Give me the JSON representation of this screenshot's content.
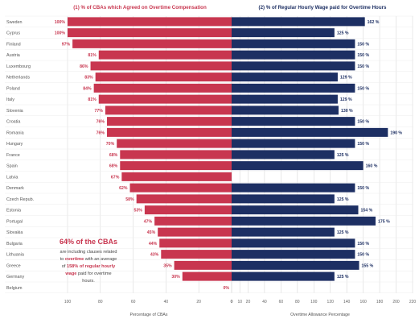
{
  "colors": {
    "left_bar": "#c8364f",
    "right_bar": "#1d2f63",
    "left_title": "#c8364f",
    "right_title": "#1d2f63",
    "callout_accent": "#c8364f",
    "grid": "#d9d9d9",
    "tick_text": "#666666",
    "label_text": "#555555"
  },
  "chart_data": {
    "type": "bar",
    "titles": {
      "left": "(1) % of CBAs which Agreed on Overtime Compensation",
      "right": "(2) % of Regular Hourly Wage paid for Overtime Hours"
    },
    "categories": [
      "Sweden",
      "Cyprus",
      "Finland",
      "Austria",
      "Luxembourg",
      "Netherlands",
      "Poland",
      "Italy",
      "Slovenia",
      "Croatia",
      "Romania",
      "Hungary",
      "France",
      "Spain",
      "Latvia",
      "Denmark",
      "Czech Repub.",
      "Estonia",
      "Portugal",
      "Slovakia",
      "Bulgaria",
      "Lithuania",
      "Greece",
      "Germany",
      "Belgium"
    ],
    "series": [
      {
        "name": "",
        "side": "left",
        "values": [
          100,
          100,
          97,
          81,
          86,
          83,
          84,
          81,
          77,
          76,
          76,
          70,
          68,
          68,
          67,
          62,
          58,
          53,
          47,
          45,
          44,
          43,
          35,
          30,
          0
        ],
        "labels": [
          "100%",
          "100%",
          "97%",
          "81%",
          "86%",
          "83%",
          "84%",
          "81%",
          "77%",
          "76%",
          "76%",
          "70%",
          "68%",
          "68%",
          "67%",
          "62%",
          "58%",
          "53%",
          "47%",
          "45%",
          "44%",
          "43%",
          "35%",
          "30%",
          "0%"
        ]
      },
      {
        "name": "",
        "side": "right",
        "values": [
          162,
          125,
          150,
          150,
          150,
          129,
          150,
          129,
          130,
          150,
          190,
          150,
          125,
          160,
          null,
          150,
          125,
          154,
          175,
          125,
          150,
          150,
          155,
          125,
          null
        ],
        "labels": [
          "162 %",
          "125 %",
          "150 %",
          "150 %",
          "150 %",
          "129 %",
          "150 %",
          "129 %",
          "130 %",
          "150 %",
          "190 %",
          "150 %",
          "125 %",
          "160 %",
          "",
          "150 %",
          "125 %",
          "154 %",
          "175 %",
          "125 %",
          "150 %",
          "150 %",
          "155 %",
          "125 %",
          ""
        ]
      }
    ],
    "left_axis": {
      "label": "Percentage of CBAs",
      "ticks": [
        100,
        80,
        60,
        40,
        20,
        0
      ],
      "tick_labels": [
        "100",
        "80",
        "60",
        "40",
        "20",
        "0"
      ],
      "range": [
        100,
        0
      ]
    },
    "right_axis": {
      "label": "Overtime Allowance Percentage",
      "ticks": [
        0,
        10,
        20,
        40,
        60,
        80,
        100,
        120,
        140,
        160,
        180,
        200,
        220
      ],
      "tick_labels": [
        "0",
        "10",
        "20",
        "40",
        "60",
        "80",
        "100",
        "120",
        "140",
        "160",
        "180",
        "200",
        "220"
      ],
      "range": [
        0,
        220
      ]
    },
    "grid": true,
    "annotation": {
      "headline": "64% of the CBAs",
      "line1": "are including clauses related",
      "line2_prefix": "to ",
      "line2_bold1": "overtime",
      "line2_middle": " with an average",
      "line3_prefix": "of ",
      "line3_bold": "158% of regular hourly",
      "line4_bold": "wage",
      "line4_suffix": " paid for overtime",
      "line5": "hours."
    }
  }
}
